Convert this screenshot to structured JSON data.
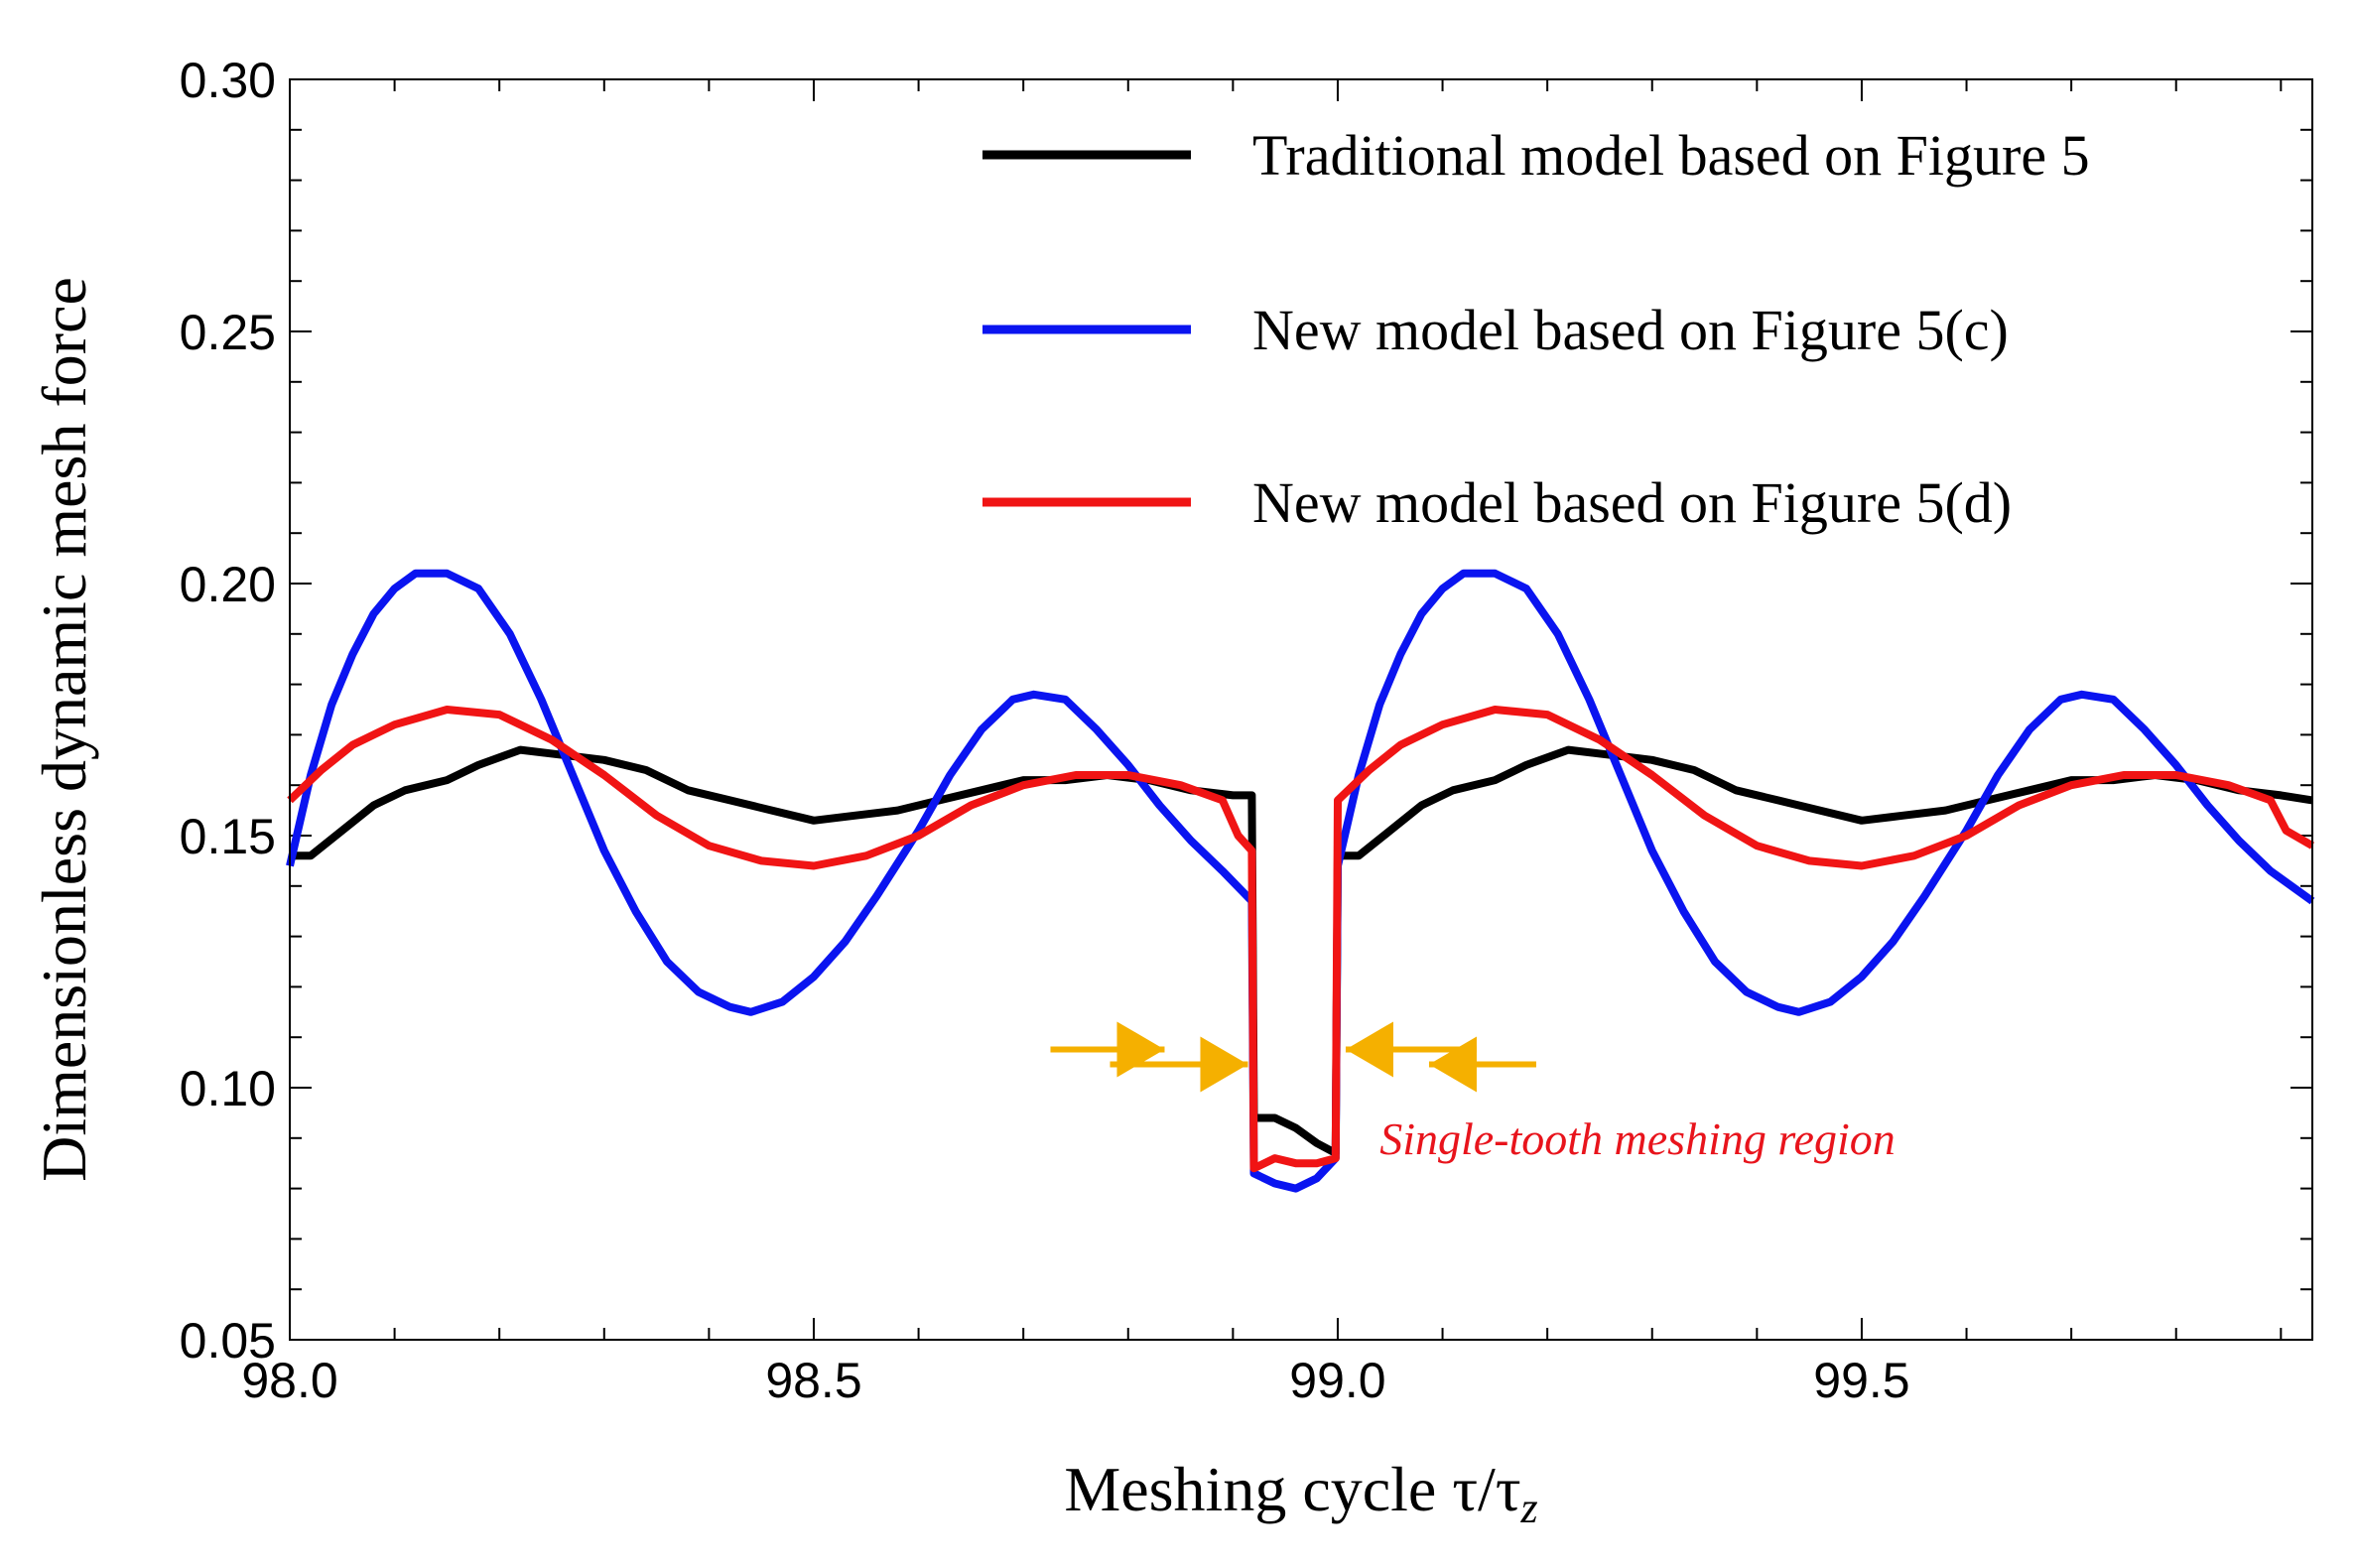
{
  "chart_data": {
    "type": "line",
    "title": "",
    "xlabel": "Meshing cycle τ/τ",
    "xlabel_subscript": "z",
    "ylabel": "Dimensionless dynamic mesh force",
    "xlim": [
      98.0,
      99.93
    ],
    "ylim": [
      0.05,
      0.3
    ],
    "x_ticks": [
      98.0,
      98.5,
      99.0,
      99.5
    ],
    "x_tick_labels": [
      "98.0",
      "98.5",
      "99.0",
      "99.5"
    ],
    "y_ticks": [
      0.05,
      0.1,
      0.15,
      0.2,
      0.25,
      0.3
    ],
    "y_tick_labels": [
      "0.05",
      "0.10",
      "0.15",
      "0.20",
      "0.25",
      "0.30"
    ],
    "legend_position": "top-right",
    "series": [
      {
        "name": "Traditional model based on Figure 5",
        "color": "#000000",
        "points": [
          [
            98.0,
            0.146
          ],
          [
            98.02,
            0.146
          ],
          [
            98.05,
            0.151
          ],
          [
            98.08,
            0.156
          ],
          [
            98.11,
            0.159
          ],
          [
            98.15,
            0.161
          ],
          [
            98.18,
            0.164
          ],
          [
            98.22,
            0.167
          ],
          [
            98.26,
            0.166
          ],
          [
            98.3,
            0.165
          ],
          [
            98.34,
            0.163
          ],
          [
            98.38,
            0.159
          ],
          [
            98.42,
            0.157
          ],
          [
            98.46,
            0.155
          ],
          [
            98.5,
            0.153
          ],
          [
            98.54,
            0.154
          ],
          [
            98.58,
            0.155
          ],
          [
            98.62,
            0.157
          ],
          [
            98.66,
            0.159
          ],
          [
            98.7,
            0.161
          ],
          [
            98.74,
            0.161
          ],
          [
            98.78,
            0.162
          ],
          [
            98.82,
            0.161
          ],
          [
            98.86,
            0.159
          ],
          [
            98.9,
            0.158
          ],
          [
            98.918,
            0.158
          ],
          [
            98.92,
            0.094
          ],
          [
            98.94,
            0.094
          ],
          [
            98.96,
            0.092
          ],
          [
            98.98,
            0.089
          ],
          [
            98.998,
            0.087
          ],
          [
            99.0,
            0.146
          ],
          [
            99.02,
            0.146
          ],
          [
            99.05,
            0.151
          ],
          [
            99.08,
            0.156
          ],
          [
            99.11,
            0.159
          ],
          [
            99.15,
            0.161
          ],
          [
            99.18,
            0.164
          ],
          [
            99.22,
            0.167
          ],
          [
            99.26,
            0.166
          ],
          [
            99.3,
            0.165
          ],
          [
            99.34,
            0.163
          ],
          [
            99.38,
            0.159
          ],
          [
            99.42,
            0.157
          ],
          [
            99.46,
            0.155
          ],
          [
            99.5,
            0.153
          ],
          [
            99.54,
            0.154
          ],
          [
            99.58,
            0.155
          ],
          [
            99.62,
            0.157
          ],
          [
            99.66,
            0.159
          ],
          [
            99.7,
            0.161
          ],
          [
            99.74,
            0.161
          ],
          [
            99.78,
            0.162
          ],
          [
            99.82,
            0.161
          ],
          [
            99.86,
            0.159
          ],
          [
            99.9,
            0.158
          ],
          [
            99.93,
            0.157
          ]
        ]
      },
      {
        "name": "New model based on Figure 5(c)",
        "color": "#0a14f0",
        "points": [
          [
            98.0,
            0.144
          ],
          [
            98.02,
            0.162
          ],
          [
            98.04,
            0.176
          ],
          [
            98.06,
            0.186
          ],
          [
            98.08,
            0.194
          ],
          [
            98.1,
            0.199
          ],
          [
            98.12,
            0.202
          ],
          [
            98.15,
            0.202
          ],
          [
            98.18,
            0.199
          ],
          [
            98.21,
            0.19
          ],
          [
            98.24,
            0.177
          ],
          [
            98.27,
            0.162
          ],
          [
            98.3,
            0.147
          ],
          [
            98.33,
            0.135
          ],
          [
            98.36,
            0.125
          ],
          [
            98.39,
            0.119
          ],
          [
            98.42,
            0.116
          ],
          [
            98.44,
            0.115
          ],
          [
            98.47,
            0.117
          ],
          [
            98.5,
            0.122
          ],
          [
            98.53,
            0.129
          ],
          [
            98.56,
            0.138
          ],
          [
            98.6,
            0.151
          ],
          [
            98.63,
            0.162
          ],
          [
            98.66,
            0.171
          ],
          [
            98.69,
            0.177
          ],
          [
            98.71,
            0.178
          ],
          [
            98.74,
            0.177
          ],
          [
            98.77,
            0.171
          ],
          [
            98.8,
            0.164
          ],
          [
            98.83,
            0.156
          ],
          [
            98.86,
            0.149
          ],
          [
            98.89,
            0.143
          ],
          [
            98.918,
            0.137
          ],
          [
            98.92,
            0.083
          ],
          [
            98.94,
            0.081
          ],
          [
            98.96,
            0.08
          ],
          [
            98.98,
            0.082
          ],
          [
            98.998,
            0.086
          ],
          [
            99.0,
            0.144
          ],
          [
            99.02,
            0.162
          ],
          [
            99.04,
            0.176
          ],
          [
            99.06,
            0.186
          ],
          [
            99.08,
            0.194
          ],
          [
            99.1,
            0.199
          ],
          [
            99.12,
            0.202
          ],
          [
            99.15,
            0.202
          ],
          [
            99.18,
            0.199
          ],
          [
            99.21,
            0.19
          ],
          [
            99.24,
            0.177
          ],
          [
            99.27,
            0.162
          ],
          [
            99.3,
            0.147
          ],
          [
            99.33,
            0.135
          ],
          [
            99.36,
            0.125
          ],
          [
            99.39,
            0.119
          ],
          [
            99.42,
            0.116
          ],
          [
            99.44,
            0.115
          ],
          [
            99.47,
            0.117
          ],
          [
            99.5,
            0.122
          ],
          [
            99.53,
            0.129
          ],
          [
            99.56,
            0.138
          ],
          [
            99.6,
            0.151
          ],
          [
            99.63,
            0.162
          ],
          [
            99.66,
            0.171
          ],
          [
            99.69,
            0.177
          ],
          [
            99.71,
            0.178
          ],
          [
            99.74,
            0.177
          ],
          [
            99.77,
            0.171
          ],
          [
            99.8,
            0.164
          ],
          [
            99.83,
            0.156
          ],
          [
            99.86,
            0.149
          ],
          [
            99.89,
            0.143
          ],
          [
            99.93,
            0.137
          ]
        ]
      },
      {
        "name": "New model based on Figure 5(d)",
        "color": "#f01414",
        "points": [
          [
            98.0,
            0.157
          ],
          [
            98.03,
            0.163
          ],
          [
            98.06,
            0.168
          ],
          [
            98.1,
            0.172
          ],
          [
            98.15,
            0.175
          ],
          [
            98.2,
            0.174
          ],
          [
            98.25,
            0.169
          ],
          [
            98.3,
            0.162
          ],
          [
            98.35,
            0.154
          ],
          [
            98.4,
            0.148
          ],
          [
            98.45,
            0.145
          ],
          [
            98.5,
            0.144
          ],
          [
            98.55,
            0.146
          ],
          [
            98.6,
            0.15
          ],
          [
            98.65,
            0.156
          ],
          [
            98.7,
            0.16
          ],
          [
            98.75,
            0.162
          ],
          [
            98.8,
            0.162
          ],
          [
            98.85,
            0.16
          ],
          [
            98.89,
            0.157
          ],
          [
            98.905,
            0.15
          ],
          [
            98.918,
            0.147
          ],
          [
            98.92,
            0.084
          ],
          [
            98.94,
            0.086
          ],
          [
            98.96,
            0.085
          ],
          [
            98.98,
            0.085
          ],
          [
            98.998,
            0.086
          ],
          [
            99.0,
            0.157
          ],
          [
            99.03,
            0.163
          ],
          [
            99.06,
            0.168
          ],
          [
            99.1,
            0.172
          ],
          [
            99.15,
            0.175
          ],
          [
            99.2,
            0.174
          ],
          [
            99.25,
            0.169
          ],
          [
            99.3,
            0.162
          ],
          [
            99.35,
            0.154
          ],
          [
            99.4,
            0.148
          ],
          [
            99.45,
            0.145
          ],
          [
            99.5,
            0.144
          ],
          [
            99.55,
            0.146
          ],
          [
            99.6,
            0.15
          ],
          [
            99.65,
            0.156
          ],
          [
            99.7,
            0.16
          ],
          [
            99.75,
            0.162
          ],
          [
            99.8,
            0.162
          ],
          [
            99.85,
            0.16
          ],
          [
            99.89,
            0.157
          ],
          [
            99.905,
            0.151
          ],
          [
            99.93,
            0.148
          ]
        ]
      }
    ],
    "annotations": [
      {
        "text": "Single-tooth meshing region",
        "color": "#e8141c",
        "at": [
          99.04,
          0.09
        ]
      }
    ],
    "arrows": {
      "color": "#f5b000",
      "left_x": 98.92,
      "right_x": 99.0,
      "y": 0.107
    }
  }
}
